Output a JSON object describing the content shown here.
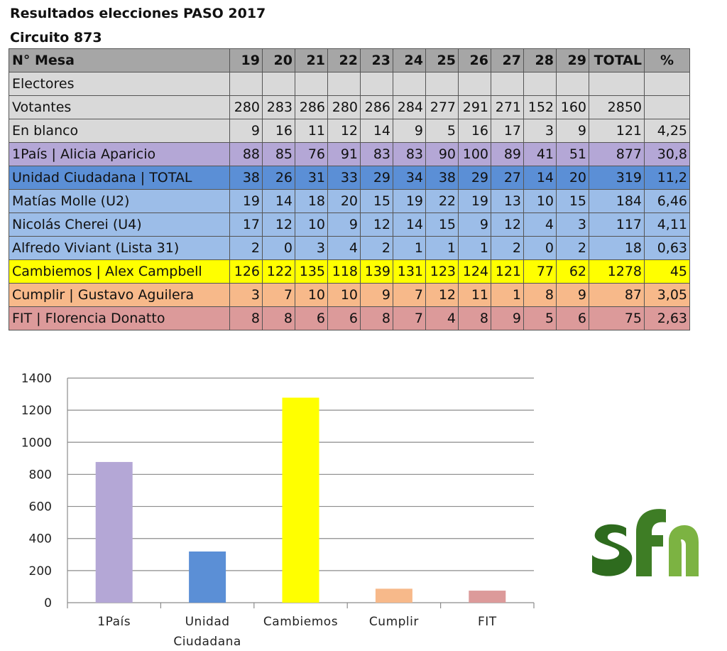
{
  "title": "Resultados elecciones PASO 2017",
  "subtitle": "Circuito 873",
  "table": {
    "columns": [
      "N° Mesa",
      "19",
      "20",
      "21",
      "22",
      "23",
      "24",
      "25",
      "26",
      "27",
      "28",
      "29",
      "TOTAL",
      "%"
    ],
    "rows": [
      {
        "label": "Electores",
        "cells": [
          "",
          "",
          "",
          "",
          "",
          "",
          "",
          "",
          "",
          "",
          "",
          "",
          ""
        ],
        "color": "#d9d9d9"
      },
      {
        "label": "Votantes",
        "cells": [
          "280",
          "283",
          "286",
          "280",
          "286",
          "284",
          "277",
          "291",
          "271",
          "152",
          "160",
          "2850",
          ""
        ],
        "color": "#d9d9d9"
      },
      {
        "label": "En blanco",
        "cells": [
          "9",
          "16",
          "11",
          "12",
          "14",
          "9",
          "5",
          "16",
          "17",
          "3",
          "9",
          "121",
          "4,25"
        ],
        "color": "#d9d9d9"
      },
      {
        "label": "1País | Alicia Aparicio",
        "cells": [
          "88",
          "85",
          "76",
          "91",
          "83",
          "83",
          "90",
          "100",
          "89",
          "41",
          "51",
          "877",
          "30,8"
        ],
        "color": "#b4a7d6"
      },
      {
        "label": "Unidad Ciudadana | TOTAL",
        "cells": [
          "38",
          "26",
          "31",
          "33",
          "29",
          "34",
          "38",
          "29",
          "27",
          "14",
          "20",
          "319",
          "11,2"
        ],
        "color": "#5b8fd6"
      },
      {
        "label": "Matías Molle (U2)",
        "cells": [
          "19",
          "14",
          "18",
          "20",
          "15",
          "19",
          "22",
          "19",
          "13",
          "10",
          "15",
          "184",
          "6,46"
        ],
        "color": "#9cbde8"
      },
      {
        "label": "Nicolás Cherei (U4)",
        "cells": [
          "17",
          "12",
          "10",
          "9",
          "12",
          "14",
          "15",
          "9",
          "12",
          "4",
          "3",
          "117",
          "4,11"
        ],
        "color": "#9cbde8"
      },
      {
        "label": "Alfredo Viviant (Lista 31)",
        "cells": [
          "2",
          "0",
          "3",
          "4",
          "2",
          "1",
          "1",
          "1",
          "2",
          "0",
          "2",
          "18",
          "0,63"
        ],
        "color": "#9cbde8"
      },
      {
        "label": "Cambiemos | Alex Campbell",
        "cells": [
          "126",
          "122",
          "135",
          "118",
          "139",
          "131",
          "123",
          "124",
          "121",
          "77",
          "62",
          "1278",
          "45"
        ],
        "color": "#ffff00"
      },
      {
        "label": "Cumplir | Gustavo Aguilera",
        "cells": [
          "3",
          "7",
          "10",
          "10",
          "9",
          "7",
          "12",
          "11",
          "1",
          "8",
          "9",
          "87",
          "3,05"
        ],
        "color": "#f7b98a"
      },
      {
        "label": "FIT | Florencia Donatto",
        "cells": [
          "8",
          "8",
          "6",
          "6",
          "8",
          "7",
          "4",
          "8",
          "9",
          "5",
          "6",
          "75",
          "2,63"
        ],
        "color": "#dc9a9a"
      }
    ]
  },
  "chart_data": {
    "type": "bar",
    "categories": [
      "1País",
      "Unidad Ciudadana",
      "Cambiemos",
      "Cumplir",
      "FIT"
    ],
    "category_lines": [
      [
        "1País"
      ],
      [
        "Unidad",
        "Ciudadana"
      ],
      [
        "Cambiemos"
      ],
      [
        "Cumplir"
      ],
      [
        "FIT"
      ]
    ],
    "values": [
      877,
      319,
      1278,
      87,
      75
    ],
    "colors": [
      "#b4a7d6",
      "#5b8fd6",
      "#ffff00",
      "#f7b98a",
      "#dc9a9a"
    ],
    "ylim": [
      0,
      1400
    ],
    "yticks": [
      0,
      200,
      400,
      600,
      800,
      1000,
      1200,
      1400
    ],
    "grid": true,
    "title": "",
    "xlabel": "",
    "ylabel": ""
  },
  "logo": {
    "text": "sfn",
    "colors": [
      "#2e6b1e",
      "#7cb342"
    ]
  }
}
